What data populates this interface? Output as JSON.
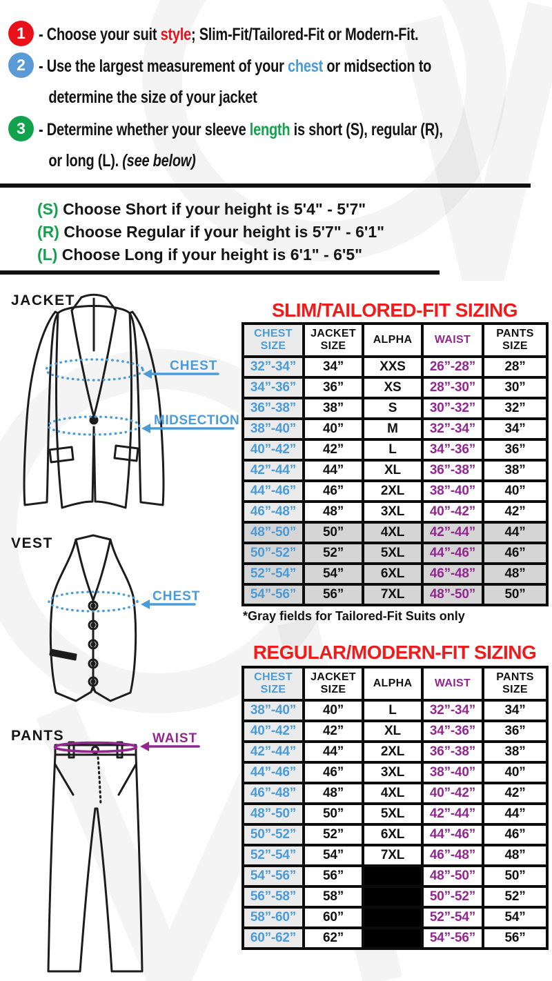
{
  "instructions": {
    "items": [
      {
        "badge": "1",
        "pre": "- Choose your suit ",
        "highlight": "style",
        "post": "; Slim-Fit/Tailored-Fit or Modern-Fit."
      },
      {
        "badge": "2",
        "pre": "- Use the largest measurement of your ",
        "highlight": "chest",
        "post": " or midsection to",
        "line2": "determine the size of your jacket"
      },
      {
        "badge": "3",
        "pre": "- Determine whether your sleeve ",
        "highlight": "length",
        "post": " is short (S), regular (R),",
        "line2": "or long (L). ",
        "line2_italic": "(see below)"
      }
    ]
  },
  "height_guide": [
    {
      "label": "(S)",
      "text": "Choose Short if your height is 5'4\" - 5'7\""
    },
    {
      "label": "(R)",
      "text": "Choose Regular if your height is 5'7\" - 6'1\""
    },
    {
      "label": "(L)",
      "text": "Choose Long if your height is 6'1\" - 6'5\""
    }
  ],
  "diagrams": {
    "jacket": {
      "title": "JACKET",
      "chest_label": "CHEST",
      "midsection_label": "MIDSECTION"
    },
    "vest": {
      "title": "VEST",
      "chest_label": "CHEST"
    },
    "pants": {
      "title": "PANTS",
      "waist_label": "WAIST"
    }
  },
  "tables": {
    "slim": {
      "title": "SLIM/TAILORED-FIT SIZING",
      "headers": [
        "CHEST SIZE",
        "JACKET SIZE",
        "ALPHA",
        "WAIST",
        "PANTS SIZE"
      ],
      "rows": [
        {
          "chest": "32”-34”",
          "jacket": "34”",
          "alpha": "XXS",
          "waist": "26”-28”",
          "pants": "28”",
          "gray": false
        },
        {
          "chest": "34”-36”",
          "jacket": "36”",
          "alpha": "XS",
          "waist": "28”-30”",
          "pants": "30”",
          "gray": false
        },
        {
          "chest": "36”-38”",
          "jacket": "38”",
          "alpha": "S",
          "waist": "30”-32”",
          "pants": "32”",
          "gray": false
        },
        {
          "chest": "38”-40”",
          "jacket": "40”",
          "alpha": "M",
          "waist": "32”-34”",
          "pants": "34”",
          "gray": false
        },
        {
          "chest": "40”-42”",
          "jacket": "42”",
          "alpha": "L",
          "waist": "34”-36”",
          "pants": "36”",
          "gray": false
        },
        {
          "chest": "42”-44”",
          "jacket": "44”",
          "alpha": "XL",
          "waist": "36”-38”",
          "pants": "38”",
          "gray": false
        },
        {
          "chest": "44”-46”",
          "jacket": "46”",
          "alpha": "2XL",
          "waist": "38”-40”",
          "pants": "40”",
          "gray": false
        },
        {
          "chest": "46”-48”",
          "jacket": "48”",
          "alpha": "3XL",
          "waist": "40”-42”",
          "pants": "42”",
          "gray": false
        },
        {
          "chest": "48”-50”",
          "jacket": "50”",
          "alpha": "4XL",
          "waist": "42”-44”",
          "pants": "44”",
          "gray": true
        },
        {
          "chest": "50”-52”",
          "jacket": "52”",
          "alpha": "5XL",
          "waist": "44”-46”",
          "pants": "46”",
          "gray": true
        },
        {
          "chest": "52”-54”",
          "jacket": "54”",
          "alpha": "6XL",
          "waist": "46”-48”",
          "pants": "48”",
          "gray": true
        },
        {
          "chest": "54”-56”",
          "jacket": "56”",
          "alpha": "7XL",
          "waist": "48”-50”",
          "pants": "50”",
          "gray": true
        }
      ],
      "footnote": "*Gray fields for Tailored-Fit Suits only"
    },
    "regular": {
      "title": "REGULAR/MODERN-FIT SIZING",
      "headers": [
        "CHEST SIZE",
        "JACKET SIZE",
        "ALPHA",
        "WAIST",
        "PANTS SIZE"
      ],
      "rows": [
        {
          "chest": "38”-40”",
          "jacket": "40”",
          "alpha": "L",
          "waist": "32”-34”",
          "pants": "34”"
        },
        {
          "chest": "40”-42”",
          "jacket": "42”",
          "alpha": "XL",
          "waist": "34”-36”",
          "pants": "36”"
        },
        {
          "chest": "42”-44”",
          "jacket": "44”",
          "alpha": "2XL",
          "waist": "36”-38”",
          "pants": "38”"
        },
        {
          "chest": "44”-46”",
          "jacket": "46”",
          "alpha": "3XL",
          "waist": "38”-40”",
          "pants": "40”"
        },
        {
          "chest": "46”-48”",
          "jacket": "48”",
          "alpha": "4XL",
          "waist": "40”-42”",
          "pants": "42”"
        },
        {
          "chest": "48”-50”",
          "jacket": "50”",
          "alpha": "5XL",
          "waist": "42”-44”",
          "pants": "44”"
        },
        {
          "chest": "50”-52”",
          "jacket": "52”",
          "alpha": "6XL",
          "waist": "44”-46”",
          "pants": "46”"
        },
        {
          "chest": "52”-54”",
          "jacket": "54”",
          "alpha": "7XL",
          "waist": "46”-48”",
          "pants": "48”"
        },
        {
          "chest": "54”-56”",
          "jacket": "56”",
          "alpha": "",
          "waist": "48”-50”",
          "pants": "50”",
          "alpha_black": true
        },
        {
          "chest": "56”-58”",
          "jacket": "58”",
          "alpha": "",
          "waist": "50”-52”",
          "pants": "52”",
          "alpha_black": true
        },
        {
          "chest": "58”-60”",
          "jacket": "60”",
          "alpha": "",
          "waist": "52”-54”",
          "pants": "54”",
          "alpha_black": true
        },
        {
          "chest": "60”-62”",
          "jacket": "62”",
          "alpha": "",
          "waist": "54”-56”",
          "pants": "56”",
          "alpha_black": true
        }
      ]
    }
  },
  "colors": {
    "accent_red": "#e8111a",
    "title_red": "#ee1c1b",
    "accent_blue": "#4a9cd8",
    "badge_blue": "#5b9bd5",
    "accent_green": "#12a24e",
    "accent_purple": "#92278f",
    "chest_column_bg": "#ebebeb",
    "tailored_gray_bg": "#d5d5d5"
  }
}
